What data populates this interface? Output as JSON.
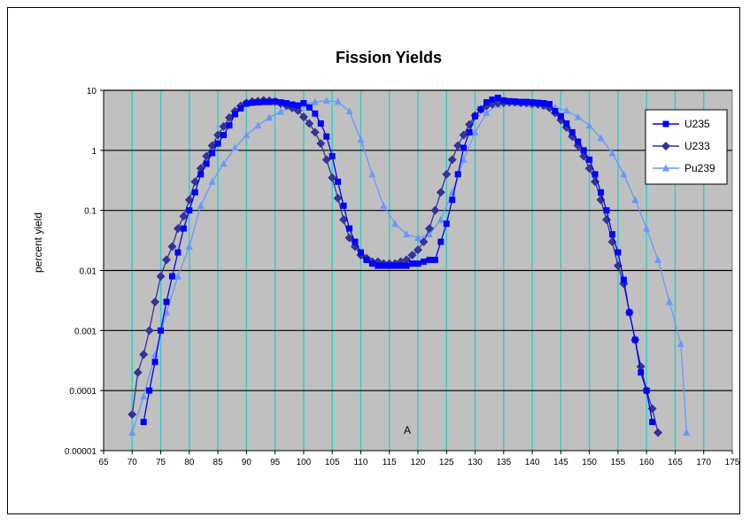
{
  "chart_data": {
    "type": "line",
    "title": "Fission Yields",
    "xlabel": "A",
    "ylabel": "percent yield",
    "xlim": [
      65,
      175
    ],
    "x_ticks": [
      65,
      70,
      75,
      80,
      85,
      90,
      95,
      100,
      105,
      110,
      115,
      120,
      125,
      130,
      135,
      140,
      145,
      150,
      155,
      160,
      165,
      170,
      175
    ],
    "y_scale": "log",
    "ylim": [
      1e-05,
      10
    ],
    "y_ticks": [
      1e-05,
      0.0001,
      0.001,
      0.01,
      0.1,
      1,
      10
    ],
    "y_tick_labels": [
      "0.00001",
      "0.0001",
      "0.001",
      "0.01",
      "0.1",
      "1",
      "10"
    ],
    "grid": true,
    "plot_background": "#c0c0c0",
    "vertical_grid_color": "#33cccc",
    "legend_position": "top-right",
    "series": [
      {
        "name": "U235",
        "color": "#0000ff",
        "marker": "square",
        "x": [
          72,
          73,
          74,
          75,
          76,
          77,
          78,
          79,
          80,
          81,
          82,
          83,
          84,
          85,
          86,
          87,
          88,
          89,
          90,
          91,
          92,
          93,
          94,
          95,
          96,
          97,
          98,
          99,
          100,
          101,
          102,
          103,
          104,
          105,
          106,
          107,
          108,
          109,
          110,
          111,
          112,
          113,
          114,
          115,
          116,
          117,
          118,
          119,
          120,
          121,
          122,
          123,
          124,
          125,
          126,
          127,
          128,
          129,
          130,
          131,
          132,
          133,
          134,
          135,
          136,
          137,
          138,
          139,
          140,
          141,
          142,
          143,
          144,
          145,
          146,
          147,
          148,
          149,
          150,
          151,
          152,
          153,
          154,
          155,
          156,
          157,
          158,
          159,
          160,
          161
        ],
        "y": [
          3e-05,
          0.0001,
          0.0003,
          0.001,
          0.003,
          0.008,
          0.02,
          0.05,
          0.1,
          0.2,
          0.4,
          0.6,
          0.9,
          1.3,
          1.8,
          2.6,
          4,
          5,
          6,
          6.2,
          6.3,
          6.4,
          6.4,
          6.5,
          6.3,
          6.1,
          5.8,
          5.6,
          6.1,
          5.2,
          4.1,
          2.8,
          1.7,
          0.8,
          0.3,
          0.12,
          0.05,
          0.03,
          0.02,
          0.015,
          0.013,
          0.012,
          0.012,
          0.012,
          0.012,
          0.012,
          0.012,
          0.013,
          0.013,
          0.014,
          0.015,
          0.015,
          0.03,
          0.06,
          0.15,
          0.4,
          1.1,
          2,
          3.7,
          4.8,
          6.3,
          7,
          7.5,
          6.8,
          6.6,
          6.5,
          6.4,
          6.4,
          6.3,
          6.2,
          6.1,
          5.9,
          4.5,
          3.7,
          2.8,
          2,
          1.4,
          1,
          0.7,
          0.4,
          0.2,
          0.1,
          0.04,
          0.02,
          0.007,
          0.002,
          0.0007,
          0.0002,
          0.0001,
          3e-05
        ]
      },
      {
        "name": "U233",
        "color": "#333399",
        "marker": "diamond",
        "x": [
          70,
          71,
          72,
          73,
          74,
          75,
          76,
          77,
          78,
          79,
          80,
          81,
          82,
          83,
          84,
          85,
          86,
          87,
          88,
          89,
          90,
          91,
          92,
          93,
          94,
          95,
          96,
          97,
          98,
          99,
          100,
          101,
          102,
          103,
          104,
          105,
          106,
          107,
          108,
          109,
          110,
          111,
          112,
          113,
          114,
          115,
          116,
          117,
          118,
          119,
          120,
          121,
          122,
          123,
          124,
          125,
          126,
          127,
          128,
          129,
          130,
          131,
          132,
          133,
          134,
          135,
          136,
          137,
          138,
          139,
          140,
          141,
          142,
          143,
          144,
          145,
          146,
          147,
          148,
          149,
          150,
          151,
          152,
          153,
          154,
          155,
          156,
          157,
          158,
          159,
          160,
          161,
          162
        ],
        "y": [
          4e-05,
          0.0002,
          0.0004,
          0.001,
          0.003,
          0.008,
          0.015,
          0.025,
          0.05,
          0.08,
          0.15,
          0.3,
          0.5,
          0.8,
          1.2,
          1.8,
          2.5,
          3.5,
          4.5,
          5.5,
          6.2,
          6.5,
          6.6,
          6.8,
          6.7,
          6.5,
          6,
          5.6,
          5.1,
          4.6,
          3.6,
          2.8,
          2,
          1.3,
          0.7,
          0.35,
          0.16,
          0.07,
          0.035,
          0.025,
          0.018,
          0.016,
          0.014,
          0.014,
          0.013,
          0.013,
          0.013,
          0.014,
          0.015,
          0.018,
          0.022,
          0.03,
          0.05,
          0.1,
          0.2,
          0.4,
          0.7,
          1.2,
          1.8,
          2.7,
          3.8,
          4.8,
          5.5,
          5.9,
          6.1,
          6.2,
          6.3,
          6.3,
          6.2,
          6.1,
          6,
          5.8,
          5.6,
          5.1,
          4.2,
          3.2,
          2.4,
          1.7,
          1.2,
          0.8,
          0.5,
          0.3,
          0.15,
          0.07,
          0.03,
          0.012,
          0.006,
          0.002,
          0.0007,
          0.00025,
          0.0001,
          5e-05,
          2e-05
        ]
      },
      {
        "name": "Pu239",
        "color": "#6699ff",
        "marker": "triangle",
        "x": [
          70,
          72,
          74,
          76,
          78,
          80,
          82,
          84,
          86,
          88,
          90,
          92,
          94,
          96,
          98,
          100,
          102,
          104,
          106,
          108,
          110,
          112,
          114,
          116,
          118,
          120,
          122,
          124,
          126,
          128,
          130,
          132,
          134,
          136,
          138,
          140,
          142,
          144,
          146,
          148,
          150,
          152,
          154,
          156,
          158,
          160,
          162,
          164,
          166,
          167
        ],
        "y": [
          2e-05,
          8e-05,
          0.0004,
          0.002,
          0.008,
          0.025,
          0.12,
          0.3,
          0.6,
          1.1,
          1.8,
          2.6,
          3.5,
          4.4,
          5.2,
          5.8,
          6.4,
          6.7,
          6.5,
          4.5,
          1.5,
          0.4,
          0.12,
          0.06,
          0.04,
          0.035,
          0.04,
          0.07,
          0.2,
          0.7,
          2,
          4.2,
          5.8,
          6.4,
          6.1,
          5.8,
          5.5,
          5.2,
          4.6,
          3.6,
          2.6,
          1.6,
          0.9,
          0.4,
          0.15,
          0.05,
          0.015,
          0.003,
          0.0006,
          2e-05
        ]
      }
    ]
  }
}
